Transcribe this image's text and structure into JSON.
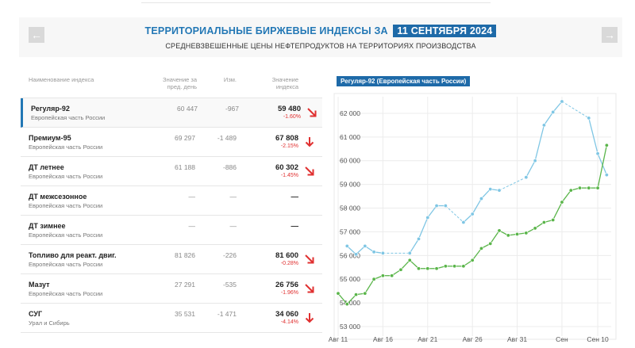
{
  "header": {
    "title_prefix": "ТЕРРИТОРИАЛЬНЫЕ БИРЖЕВЫЕ ИНДЕКСЫ ЗА",
    "date": "11 СЕНТЯБРЯ 2024",
    "subtitle": "СРЕДНЕВЗВЕШЕННЫЕ ЦЕНЫ НЕФТЕПРОДУКТОВ НА ТЕРРИТОРИЯХ ПРОИЗВОДСТВА",
    "prev_icon": "←",
    "next_icon": "→"
  },
  "table": {
    "columns": {
      "name": "Наименование индекса",
      "prev": "Значение за пред. день",
      "change": "Изм.",
      "value": "Значение индекса"
    },
    "rows": [
      {
        "name": "Регуляр-92",
        "region": "Европейская часть России",
        "prev": "60 447",
        "change": "-967",
        "value": "59 480",
        "pct": "-1.60%",
        "arrow": "down-right",
        "active": true
      },
      {
        "name": "Премиум-95",
        "region": "Европейская часть России",
        "prev": "69 297",
        "change": "-1 489",
        "value": "67 808",
        "pct": "-2.15%",
        "arrow": "down",
        "active": false
      },
      {
        "name": "ДТ летнее",
        "region": "Европейская часть России",
        "prev": "61 188",
        "change": "-886",
        "value": "60 302",
        "pct": "-1.45%",
        "arrow": "down-right",
        "active": false
      },
      {
        "name": "ДТ межсезонное",
        "region": "Европейская часть России",
        "prev": "—",
        "change": "—",
        "value": "—",
        "pct": "",
        "arrow": "none",
        "active": false
      },
      {
        "name": "ДТ зимнее",
        "region": "Европейская часть России",
        "prev": "—",
        "change": "—",
        "value": "—",
        "pct": "",
        "arrow": "none",
        "active": false
      },
      {
        "name": "Топливо для реакт. двиг.",
        "region": "Европейская часть России",
        "prev": "81 826",
        "change": "-226",
        "value": "81 600",
        "pct": "-0.28%",
        "arrow": "down-right",
        "active": false
      },
      {
        "name": "Мазут",
        "region": "Европейская часть России",
        "prev": "27 291",
        "change": "-535",
        "value": "26 756",
        "pct": "-1.96%",
        "arrow": "down-right",
        "active": false
      },
      {
        "name": "СУГ",
        "region": "Урал и Сибирь",
        "prev": "35 531",
        "change": "-1 471",
        "value": "34 060",
        "pct": "-4.14%",
        "arrow": "down",
        "active": false
      }
    ]
  },
  "colors": {
    "accent": "#1e6aa8",
    "negative": "#e03030",
    "blue_series": "#7fc6e4",
    "green_series": "#5ab54a"
  },
  "chart_data": {
    "type": "line",
    "title": "Регуляр-92 (Европейская часть России)",
    "xlabel": "",
    "ylabel": "",
    "ylim": [
      53000,
      62500
    ],
    "yticks": [
      "53 000",
      "54 000",
      "55 000",
      "56 000",
      "57 000",
      "58 000",
      "59 000",
      "60 000",
      "61 000",
      "62 000"
    ],
    "xticks": [
      "Авг 11",
      "Авг 16",
      "Авг 21",
      "Авг 26",
      "Авг 31",
      "Сен",
      "Сен 10"
    ],
    "xtick_days": [
      11,
      16,
      21,
      26,
      31,
      36,
      40
    ],
    "grid": true,
    "series": [
      {
        "color": "#7fc6e4",
        "points": [
          [
            12,
            56400
          ],
          [
            13,
            56050
          ],
          [
            14,
            56400
          ],
          [
            15,
            56150
          ],
          [
            16,
            56100
          ],
          [
            19,
            56100
          ],
          [
            20,
            56700
          ],
          [
            21,
            57600
          ],
          [
            22,
            58100
          ],
          [
            23,
            58100
          ],
          [
            25,
            57400
          ],
          [
            26,
            57750
          ],
          [
            27,
            58400
          ],
          [
            28,
            58800
          ],
          [
            29,
            58750
          ],
          [
            32,
            59300
          ],
          [
            33,
            60000
          ],
          [
            34,
            61500
          ],
          [
            35,
            62050
          ],
          [
            36,
            62500
          ],
          [
            39,
            61800
          ],
          [
            40,
            60300
          ],
          [
            41,
            59400
          ]
        ]
      },
      {
        "color": "#5ab54a",
        "points": [
          [
            11,
            54400
          ],
          [
            12,
            53950
          ],
          [
            13,
            54350
          ],
          [
            14,
            54400
          ],
          [
            15,
            55000
          ],
          [
            16,
            55150
          ],
          [
            17,
            55150
          ],
          [
            18,
            55400
          ],
          [
            19,
            55800
          ],
          [
            20,
            55450
          ],
          [
            21,
            55450
          ],
          [
            22,
            55450
          ],
          [
            23,
            55550
          ],
          [
            24,
            55550
          ],
          [
            25,
            55550
          ],
          [
            26,
            55800
          ],
          [
            27,
            56300
          ],
          [
            28,
            56500
          ],
          [
            29,
            57050
          ],
          [
            30,
            56850
          ],
          [
            31,
            56900
          ],
          [
            32,
            56950
          ],
          [
            33,
            57150
          ],
          [
            34,
            57400
          ],
          [
            35,
            57500
          ],
          [
            36,
            58250
          ],
          [
            37,
            58750
          ],
          [
            38,
            58850
          ],
          [
            39,
            58850
          ],
          [
            40,
            58850
          ],
          [
            41,
            60650
          ]
        ]
      }
    ]
  }
}
